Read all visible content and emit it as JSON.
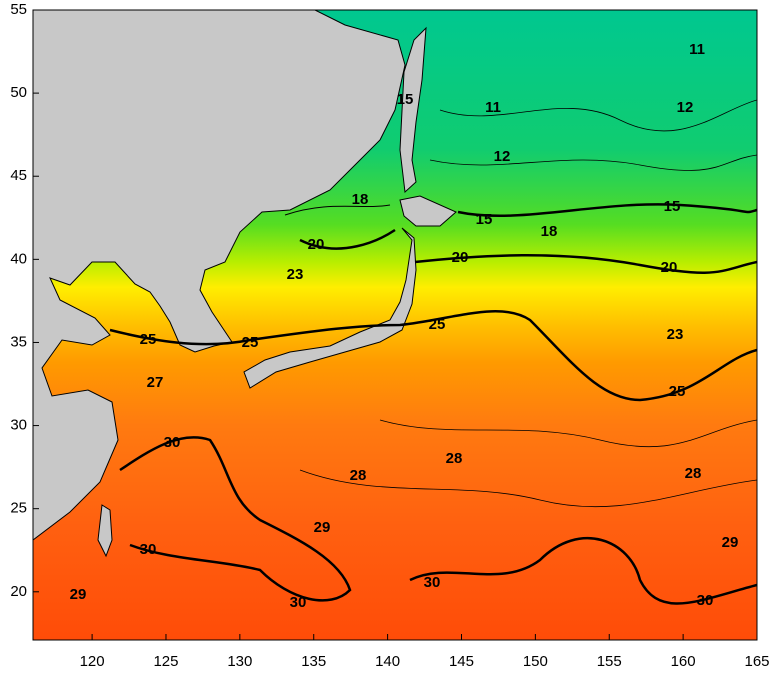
{
  "map": {
    "type": "contour",
    "lon_range": [
      116,
      165
    ],
    "lat_range": [
      17.1,
      55
    ],
    "lon_ticks": [
      120,
      125,
      130,
      135,
      140,
      145,
      150,
      155,
      160,
      165
    ],
    "lat_ticks": [
      20,
      25,
      30,
      35,
      40,
      45,
      50,
      55
    ],
    "contour_labels": [
      11,
      15,
      11,
      12,
      12,
      18,
      15,
      15,
      18,
      20,
      20,
      20,
      23,
      23,
      25,
      25,
      25,
      25,
      27,
      30,
      28,
      28,
      28,
      29,
      30,
      29,
      29,
      30,
      30,
      30
    ]
  }
}
